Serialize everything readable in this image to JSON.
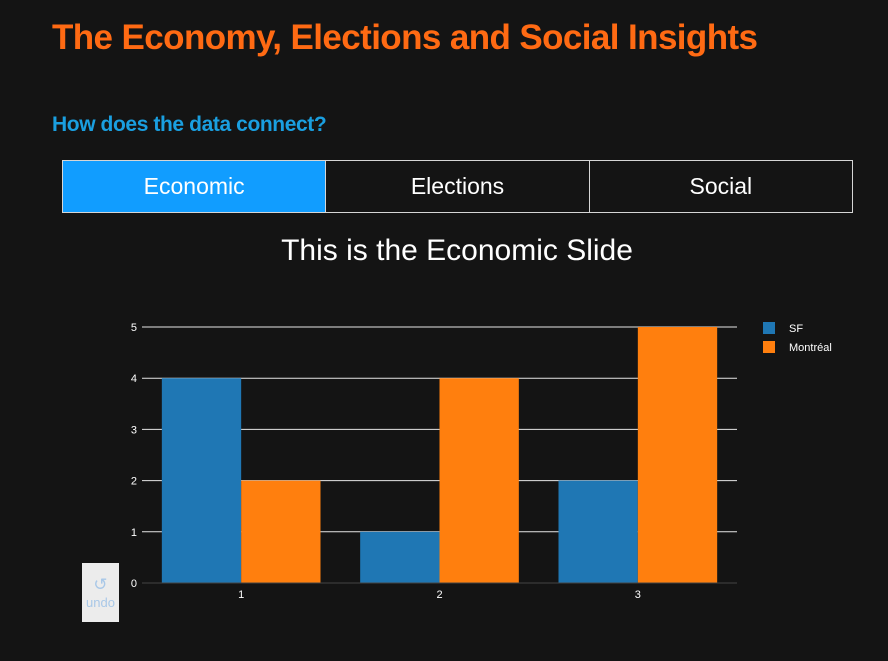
{
  "header": {
    "title": "The Economy, Elections and Social Insights",
    "subtitle": "How does the data connect?"
  },
  "tabs": [
    {
      "label": "Economic",
      "active": true
    },
    {
      "label": "Elections",
      "active": false
    },
    {
      "label": "Social",
      "active": false
    }
  ],
  "slide": {
    "title": "This is the Economic Slide"
  },
  "undo": {
    "icon": "undo-icon",
    "label": "undo"
  },
  "colors": {
    "background": "#141414",
    "title": "#ff6a13",
    "subtitle": "#1a9fe0",
    "active_tab": "#119dff"
  },
  "chart_data": {
    "type": "bar",
    "categories": [
      "1",
      "2",
      "3"
    ],
    "series": [
      {
        "name": "SF",
        "values": [
          4,
          1,
          2
        ],
        "color": "#1f77b4"
      },
      {
        "name": "Montréal",
        "values": [
          2,
          4,
          5
        ],
        "color": "#ff7f0e"
      }
    ],
    "yticks": [
      0,
      1,
      2,
      3,
      4,
      5
    ],
    "ylim": [
      0,
      5
    ],
    "grid": true,
    "legend_position": "top-right"
  }
}
